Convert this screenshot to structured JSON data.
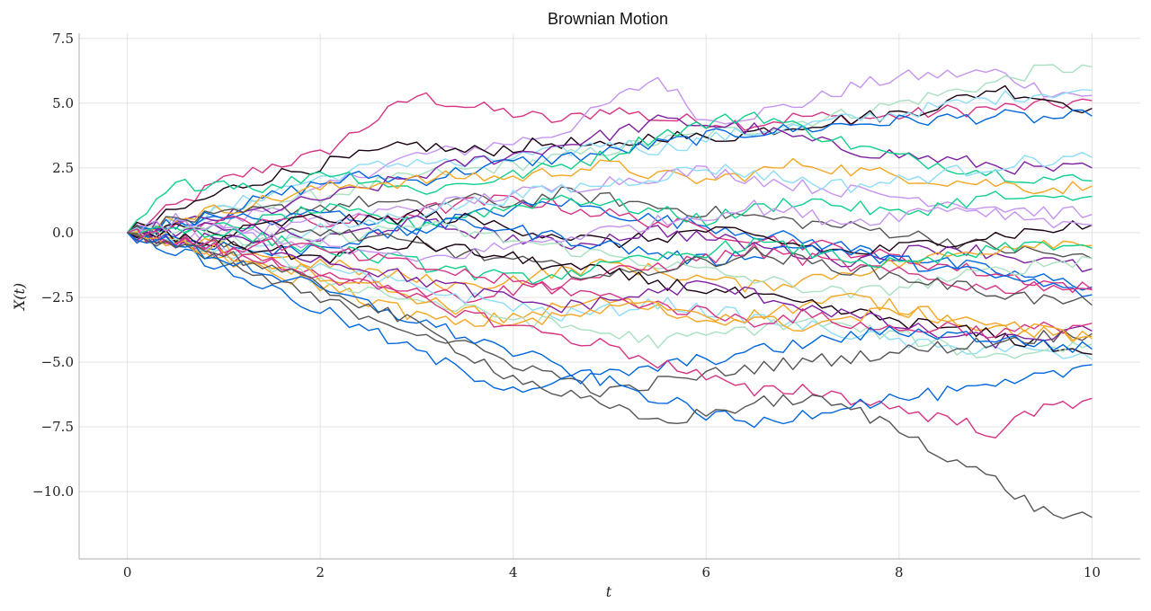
{
  "chart_data": {
    "type": "line",
    "title": "Brownian Motion",
    "xlabel": "t",
    "ylabel": "X(t)",
    "xlim": [
      -0.5,
      10.5
    ],
    "ylim": [
      -12.6,
      7.7
    ],
    "x_ticks": [
      0,
      2,
      4,
      6,
      8,
      10
    ],
    "x_tick_labels": [
      "0",
      "2",
      "4",
      "6",
      "8",
      "10"
    ],
    "y_ticks": [
      7.5,
      5.0,
      2.5,
      0.0,
      -2.5,
      -5.0,
      -7.5,
      -10.0
    ],
    "y_tick_labels": [
      "7.5",
      "5.0",
      "2.5",
      "0.0",
      "−2.5",
      "−5.0",
      "−7.5",
      "−10.0"
    ],
    "grid": true,
    "x": [
      0,
      0.5,
      1,
      1.5,
      2,
      2.5,
      3,
      3.5,
      4,
      4.5,
      5,
      5.5,
      6,
      6.5,
      7,
      7.5,
      8,
      8.5,
      9,
      9.5,
      10
    ],
    "series": [
      {
        "color": "#d63384",
        "values": [
          0,
          1.0,
          2.0,
          2.6,
          3.0,
          4.2,
          5.3,
          4.9,
          4.6,
          4.3,
          4.8,
          4.4,
          4.3,
          4.2,
          4.5,
          4.4,
          4.5,
          4.7,
          4.8,
          4.9,
          5.1
        ]
      },
      {
        "color": "#c594f0",
        "values": [
          0,
          0.5,
          0.3,
          1.0,
          1.6,
          2.4,
          3.0,
          3.2,
          3.5,
          3.9,
          5.0,
          6.0,
          4.3,
          4.6,
          5.0,
          5.6,
          6.0,
          6.1,
          6.2,
          5.5,
          5.3
        ]
      },
      {
        "color": "#a8e0c0",
        "values": [
          0,
          0.4,
          0.8,
          1.2,
          1.4,
          1.8,
          2.2,
          2.4,
          2.6,
          2.9,
          3.2,
          3.5,
          3.8,
          4.0,
          4.3,
          4.6,
          5.0,
          5.4,
          5.8,
          6.3,
          6.4
        ]
      },
      {
        "color": "#1a0013",
        "values": [
          0,
          0.8,
          1.6,
          2.2,
          2.6,
          3.0,
          3.4,
          3.1,
          3.3,
          3.5,
          3.2,
          3.8,
          3.6,
          3.9,
          4.2,
          4.4,
          4.6,
          5.0,
          5.6,
          5.2,
          4.8
        ]
      },
      {
        "color": "#8edcf8",
        "values": [
          0,
          0.3,
          0.9,
          1.6,
          2.1,
          2.5,
          2.8,
          2.6,
          2.9,
          3.1,
          3.5,
          3.2,
          3.6,
          3.9,
          4.1,
          4.4,
          4.6,
          4.9,
          5.2,
          5.4,
          5.5
        ]
      },
      {
        "color": "#0066dd",
        "values": [
          0,
          0.4,
          0.8,
          1.4,
          1.9,
          2.2,
          2.0,
          2.4,
          2.7,
          2.9,
          3.1,
          3.4,
          3.7,
          3.9,
          4.0,
          4.2,
          4.3,
          4.4,
          4.5,
          4.4,
          4.5
        ]
      },
      {
        "color": "#7d1fa0",
        "values": [
          0,
          0.3,
          0.6,
          0.9,
          1.3,
          1.7,
          2.2,
          2.7,
          3.0,
          3.4,
          3.8,
          4.3,
          4.2,
          4.0,
          3.6,
          3.2,
          3.0,
          2.8,
          2.6,
          2.4,
          2.5
        ]
      },
      {
        "color": "#0fd08a",
        "values": [
          0,
          1.8,
          2.0,
          1.7,
          2.4,
          2.1,
          1.6,
          1.9,
          2.2,
          2.6,
          3.0,
          3.8,
          4.2,
          4.6,
          4.0,
          3.4,
          2.9,
          2.6,
          2.3,
          2.1,
          2.0
        ]
      },
      {
        "color": "#f5a623",
        "values": [
          0,
          0.6,
          0.9,
          1.3,
          1.7,
          1.9,
          2.0,
          2.2,
          2.1,
          2.4,
          2.6,
          2.2,
          2.0,
          2.3,
          2.7,
          2.4,
          2.2,
          2.0,
          1.9,
          1.7,
          1.8
        ]
      },
      {
        "color": "#555555",
        "values": [
          0,
          0.5,
          0.6,
          0.9,
          1.0,
          1.2,
          1.0,
          1.3,
          1.1,
          1.5,
          1.3,
          1.0,
          0.8,
          0.6,
          0.4,
          0.2,
          0.0,
          -0.3,
          -0.6,
          -0.8,
          -1.0
        ]
      },
      {
        "color": "#0066dd",
        "values": [
          0,
          0.3,
          0.7,
          0.4,
          0.8,
          0.5,
          0.2,
          0.6,
          0.9,
          1.2,
          0.8,
          0.5,
          0.3,
          0.0,
          -0.3,
          -0.6,
          -0.9,
          -1.2,
          -1.5,
          -1.8,
          -2.1
        ]
      },
      {
        "color": "#d63384",
        "values": [
          0,
          0.2,
          0.4,
          0.6,
          0.3,
          0.5,
          0.8,
          1.1,
          1.3,
          1.0,
          0.7,
          0.4,
          0.1,
          -0.2,
          -0.4,
          -0.7,
          -1.0,
          -1.3,
          -1.6,
          -1.9,
          -2.2
        ]
      },
      {
        "color": "#c594f0",
        "values": [
          0,
          -0.3,
          -0.1,
          0.2,
          0.4,
          0.7,
          1.0,
          1.2,
          1.5,
          1.7,
          2.0,
          2.2,
          2.4,
          2.1,
          1.8,
          1.6,
          1.4,
          1.2,
          1.0,
          0.8,
          0.7
        ]
      },
      {
        "color": "#0fd08a",
        "values": [
          0,
          -0.2,
          0.2,
          0.5,
          0.9,
          0.6,
          0.3,
          0.7,
          1.0,
          1.4,
          1.1,
          0.8,
          0.5,
          0.9,
          1.3,
          1.0,
          0.7,
          1.1,
          1.4,
          1.2,
          1.4
        ]
      },
      {
        "color": "#1a0013",
        "values": [
          0,
          0.2,
          -0.1,
          0.3,
          0.6,
          0.4,
          0.7,
          0.5,
          0.2,
          -0.1,
          -0.4,
          -0.2,
          0.1,
          -0.2,
          -0.5,
          -0.8,
          -0.6,
          -0.3,
          -0.1,
          0.1,
          0.3
        ]
      },
      {
        "color": "#8edcf8",
        "values": [
          0,
          -0.4,
          -0.7,
          -0.3,
          0.1,
          0.4,
          0.8,
          1.1,
          1.4,
          1.7,
          1.9,
          2.2,
          2.5,
          2.3,
          2.0,
          1.8,
          2.0,
          2.3,
          2.6,
          2.8,
          2.9
        ]
      },
      {
        "color": "#7d1fa0",
        "values": [
          0,
          -0.1,
          0.3,
          0.0,
          -0.3,
          0.1,
          0.4,
          0.1,
          -0.2,
          -0.5,
          -0.2,
          0.1,
          -0.2,
          -0.5,
          -0.8,
          -1.1,
          -0.8,
          -0.5,
          -0.8,
          -1.1,
          -1.4
        ]
      },
      {
        "color": "#f5a623",
        "values": [
          0,
          -0.3,
          -0.6,
          -0.9,
          -1.2,
          -1.5,
          -1.8,
          -2.1,
          -1.8,
          -1.5,
          -1.2,
          -1.5,
          -1.8,
          -2.1,
          -1.8,
          -1.5,
          -1.2,
          -0.9,
          -0.6,
          -0.3,
          -0.5
        ]
      },
      {
        "color": "#a8e0c0",
        "values": [
          0,
          0.1,
          -0.2,
          -0.5,
          -0.3,
          0.0,
          0.3,
          0.0,
          -0.3,
          -0.6,
          -0.9,
          -1.2,
          -1.5,
          -1.8,
          -2.1,
          -2.4,
          -2.1,
          -1.8,
          -1.5,
          -1.2,
          -1.0
        ]
      },
      {
        "color": "#0066dd",
        "values": [
          0,
          -0.2,
          -0.5,
          -0.8,
          -0.5,
          -0.2,
          0.1,
          0.4,
          0.1,
          -0.2,
          -0.5,
          -0.8,
          -1.1,
          -0.8,
          -0.5,
          -0.8,
          -1.1,
          -1.4,
          -1.7,
          -2.0,
          -2.4
        ]
      },
      {
        "color": "#d63384",
        "values": [
          0,
          -0.4,
          -0.8,
          -1.1,
          -1.5,
          -1.8,
          -2.2,
          -2.5,
          -2.2,
          -1.9,
          -1.6,
          -1.3,
          -1.0,
          -0.7,
          -1.0,
          -1.3,
          -1.6,
          -1.9,
          -2.2,
          -2.0,
          -2.2
        ]
      },
      {
        "color": "#555555",
        "values": [
          0,
          -0.2,
          -0.5,
          -0.2,
          0.1,
          -0.2,
          -0.5,
          -0.8,
          -1.1,
          -1.4,
          -1.7,
          -1.4,
          -1.1,
          -0.8,
          -1.1,
          -1.4,
          -1.7,
          -2.0,
          -2.3,
          -2.6,
          -2.8
        ]
      },
      {
        "color": "#f5a623",
        "values": [
          0,
          -0.5,
          -1.0,
          -1.6,
          -2.0,
          -2.6,
          -3.2,
          -3.6,
          -3.2,
          -2.9,
          -2.6,
          -3.0,
          -3.4,
          -3.2,
          -2.8,
          -2.5,
          -2.9,
          -3.3,
          -3.7,
          -3.9,
          -4.1
        ]
      },
      {
        "color": "#8edcf8",
        "values": [
          0,
          -0.3,
          -0.7,
          -1.0,
          -1.4,
          -1.8,
          -2.1,
          -2.5,
          -2.8,
          -3.2,
          -3.0,
          -2.7,
          -3.0,
          -3.3,
          -3.6,
          -3.9,
          -4.2,
          -4.5,
          -4.4,
          -4.7,
          -4.9
        ]
      },
      {
        "color": "#1a0013",
        "values": [
          0,
          -0.2,
          -0.4,
          -0.7,
          -1.0,
          -0.7,
          -0.4,
          -0.7,
          -1.0,
          -1.3,
          -1.6,
          -1.9,
          -2.2,
          -2.5,
          -2.8,
          -3.1,
          -3.4,
          -3.7,
          -4.0,
          -4.3,
          -4.7
        ]
      },
      {
        "color": "#7d1fa0",
        "values": [
          0,
          -0.4,
          -0.2,
          -0.6,
          -1.0,
          -1.4,
          -1.8,
          -2.2,
          -2.6,
          -2.9,
          -2.6,
          -2.3,
          -2.0,
          -2.4,
          -2.8,
          -3.2,
          -3.6,
          -4.0,
          -4.2,
          -4.0,
          -3.8
        ]
      },
      {
        "color": "#a8e0c0",
        "values": [
          0,
          -0.5,
          -1.0,
          -1.4,
          -1.8,
          -2.2,
          -2.6,
          -3.0,
          -3.3,
          -3.6,
          -3.9,
          -4.2,
          -4.0,
          -3.7,
          -3.4,
          -3.7,
          -4.0,
          -4.4,
          -4.8,
          -4.5,
          -4.3
        ]
      },
      {
        "color": "#0fd08a",
        "values": [
          0,
          0.2,
          0.0,
          -0.3,
          -0.6,
          -0.9,
          -1.2,
          -1.5,
          -1.8,
          -1.6,
          -1.3,
          -1.0,
          -0.7,
          -0.4,
          -0.7,
          -1.0,
          -1.3,
          -1.0,
          -0.7,
          -0.4,
          -0.6
        ]
      },
      {
        "color": "#c594f0",
        "values": [
          0,
          0.3,
          0.1,
          -0.2,
          -0.5,
          -0.8,
          -1.1,
          -0.8,
          -0.5,
          -0.2,
          0.1,
          0.4,
          0.7,
          1.0,
          0.7,
          0.4,
          0.7,
          1.0,
          0.8,
          0.5,
          0.3
        ]
      },
      {
        "color": "#d63384",
        "values": [
          0,
          -0.3,
          -0.6,
          -0.4,
          -0.7,
          -1.0,
          -1.3,
          -1.6,
          -1.9,
          -2.2,
          -2.5,
          -2.8,
          -3.1,
          -3.4,
          -3.2,
          -3.5,
          -3.8,
          -3.6,
          -3.9,
          -3.7,
          -3.5
        ]
      },
      {
        "color": "#555555",
        "values": [
          0,
          -0.6,
          -1.2,
          -1.9,
          -2.6,
          -3.2,
          -3.8,
          -4.4,
          -5.0,
          -5.6,
          -6.2,
          -5.8,
          -5.5,
          -5.2,
          -5.0,
          -4.8,
          -4.6,
          -4.4,
          -4.2,
          -4.0,
          -3.9
        ]
      },
      {
        "color": "#0066dd",
        "values": [
          0,
          -0.7,
          -1.4,
          -2.2,
          -3.0,
          -3.8,
          -4.6,
          -5.4,
          -6.0,
          -5.8,
          -5.5,
          -5.2,
          -4.9,
          -4.6,
          -4.3,
          -4.0,
          -3.8,
          -3.9,
          -4.1,
          -4.3,
          -4.5
        ]
      },
      {
        "color": "#f5a623",
        "values": [
          0,
          -0.4,
          -0.8,
          -1.2,
          -1.6,
          -2.0,
          -2.5,
          -3.0,
          -3.5,
          -3.3,
          -3.0,
          -2.8,
          -3.1,
          -3.4,
          -3.6,
          -3.3,
          -3.0,
          -3.2,
          -3.5,
          -3.8,
          -4.0
        ]
      },
      {
        "color": "#d63384",
        "values": [
          0,
          -0.3,
          -0.7,
          -1.2,
          -1.6,
          -2.1,
          -2.6,
          -3.1,
          -3.6,
          -4.0,
          -4.4,
          -5.0,
          -5.6,
          -6.2,
          -6.0,
          -6.4,
          -6.8,
          -7.2,
          -7.7,
          -6.8,
          -6.4
        ]
      },
      {
        "color": "#0066dd",
        "values": [
          0,
          -0.5,
          -1.0,
          -1.6,
          -2.2,
          -2.8,
          -3.4,
          -4.0,
          -4.6,
          -5.2,
          -5.8,
          -6.4,
          -7.0,
          -7.4,
          -7.0,
          -6.6,
          -6.4,
          -6.2,
          -6.0,
          -5.6,
          -5.1
        ]
      },
      {
        "color": "#555555",
        "values": [
          0,
          -0.4,
          -0.8,
          -1.4,
          -2.1,
          -2.8,
          -3.6,
          -4.6,
          -5.6,
          -6.2,
          -6.8,
          -7.3,
          -7.0,
          -6.6,
          -6.4,
          -6.8,
          -7.6,
          -8.6,
          -9.6,
          -10.8,
          -11.0
        ]
      }
    ]
  }
}
